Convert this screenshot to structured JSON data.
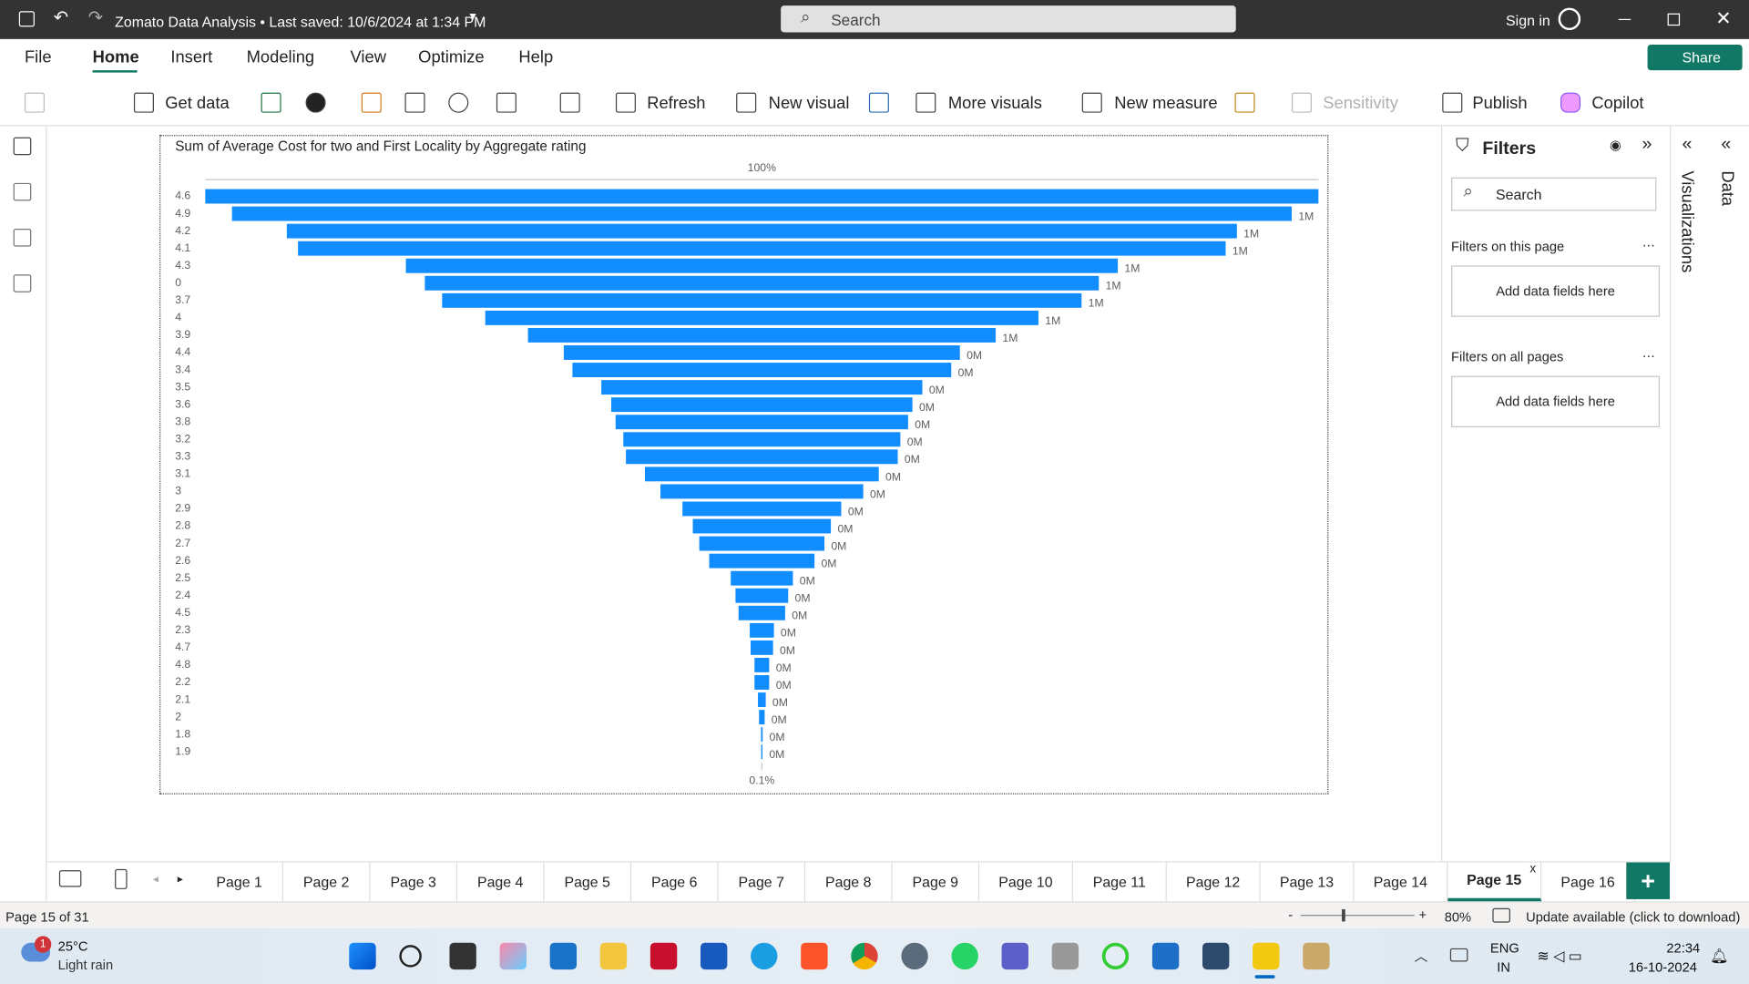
{
  "title_bar": {
    "file_title": "Zomato Data Analysis • Last saved: 10/6/2024 at 1:34 PM",
    "search": "Search",
    "sign_in": "Sign in"
  },
  "menu": [
    "File",
    "Home",
    "Insert",
    "Modeling",
    "View",
    "Optimize",
    "Help"
  ],
  "share": "Share",
  "ribbon": [
    "Get data",
    "Refresh",
    "New visual",
    "More visuals",
    "New measure",
    "Sensitivity",
    "Publish",
    "Copilot"
  ],
  "chart_data": {
    "type": "funnel",
    "title": "Sum of Average Cost for two and First Locality by Aggregate rating",
    "top_rate_label": "100%",
    "bottom_rate_label": "0.1%",
    "color": "#118dff",
    "categories": [
      "4.6",
      "4.9",
      "4.2",
      "4.1",
      "4.3",
      "0",
      "3.7",
      "4",
      "3.9",
      "4.4",
      "3.4",
      "3.5",
      "3.6",
      "3.8",
      "3.2",
      "3.3",
      "3.1",
      "3",
      "2.9",
      "2.8",
      "2.7",
      "2.6",
      "2.5",
      "2.4",
      "4.5",
      "2.3",
      "4.7",
      "4.8",
      "2.2",
      "2.1",
      "2",
      "1.8",
      "1.9"
    ],
    "values": [
      1290000,
      1228000,
      1101000,
      1075000,
      825000,
      781000,
      741000,
      641000,
      542000,
      459000,
      439000,
      372000,
      349000,
      339000,
      321000,
      315000,
      271000,
      235000,
      184000,
      160000,
      145000,
      122000,
      72000,
      61000,
      54000,
      28000,
      26000,
      17000,
      17000,
      9000,
      6500,
      1900,
      1500
    ],
    "value_labels": [
      null,
      "1M",
      "1M",
      "1M",
      "1M",
      "1M",
      "1M",
      "1M",
      "1M",
      "0M",
      "0M",
      "0M",
      "0M",
      "0M",
      "0M",
      "0M",
      "0M",
      "0M",
      "0M",
      "0M",
      "0M",
      "0M",
      "0M",
      "0M",
      "0M",
      "0M",
      "0M",
      "0M",
      "0M",
      "0M",
      "0M",
      "0M",
      "0M"
    ]
  },
  "filters": {
    "title": "Filters",
    "search": "Search",
    "on_page": "Filters on this page",
    "on_page_add": "Add data fields here",
    "all_pages": "Filters on all pages",
    "all_pages_add": "Add data fields here"
  },
  "side_tabs": [
    "Visualizations",
    "Data"
  ],
  "pages": [
    "Page 1",
    "Page 2",
    "Page 3",
    "Page 4",
    "Page 5",
    "Page 6",
    "Page 7",
    "Page 8",
    "Page 9",
    "Page 10",
    "Page 11",
    "Page 12",
    "Page 13",
    "Page 14",
    "Page 15",
    "Page 16"
  ],
  "active_page_index": 14,
  "status": {
    "page_of": "Page 15 of 31",
    "zoom": "80%",
    "update": "Update available (click to download)"
  },
  "taskbar": {
    "badge": "1",
    "temperature": "25°C",
    "weather": "Light rain",
    "lang": "ENG",
    "region": "IN",
    "time": "22:34",
    "date": "16-10-2024"
  }
}
